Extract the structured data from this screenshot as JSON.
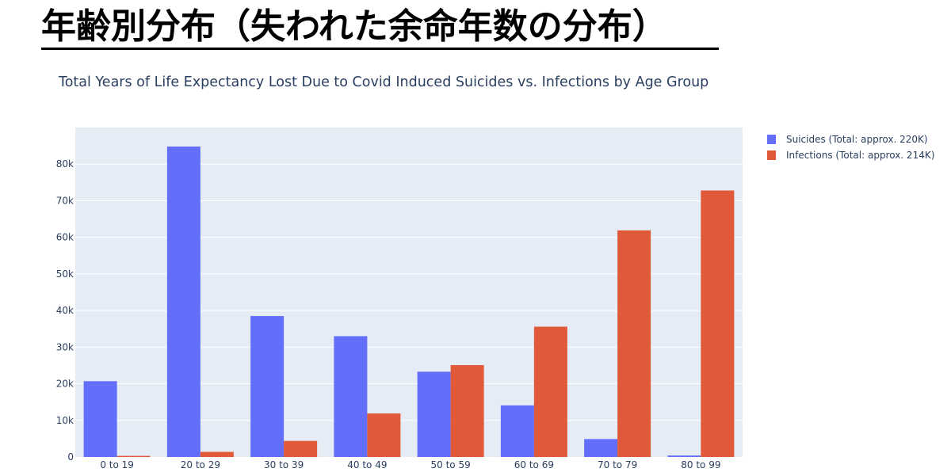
{
  "slide": {
    "title": "年齢別分布（失われた余命年数の分布）"
  },
  "colors": {
    "suicides": "#636efa",
    "infections": "#e05a3a",
    "plot_background": "#e5ecf6",
    "grid": "#ffffff",
    "text": "#2a3f5f"
  },
  "chart_data": {
    "type": "bar",
    "title": "Total Years of Life Expectancy Lost Due to Covid Induced Suicides vs. Infections by Age Group",
    "xlabel": "",
    "ylabel": "",
    "ylim": [
      0,
      90000
    ],
    "y_ticks": [
      {
        "value": 0,
        "label": "0"
      },
      {
        "value": 10000,
        "label": "10k"
      },
      {
        "value": 20000,
        "label": "20k"
      },
      {
        "value": 30000,
        "label": "30k"
      },
      {
        "value": 40000,
        "label": "40k"
      },
      {
        "value": 50000,
        "label": "50k"
      },
      {
        "value": 60000,
        "label": "60k"
      },
      {
        "value": 70000,
        "label": "70k"
      },
      {
        "value": 80000,
        "label": "80k"
      }
    ],
    "grid": true,
    "legend_position": "top-right",
    "categories": [
      "0 to 19",
      "20 to 29",
      "30 to 39",
      "40 to 49",
      "50 to 59",
      "60 to 69",
      "70 to 79",
      "80 to 99"
    ],
    "series": [
      {
        "name": "Suicides (Total: approx. 220K)",
        "color_key": "suicides",
        "values": [
          20700,
          84800,
          38500,
          33000,
          23300,
          14100,
          4900,
          400
        ]
      },
      {
        "name": "Infections (Total: approx. 214K)",
        "color_key": "infections",
        "values": [
          300,
          1400,
          4400,
          11900,
          25100,
          35600,
          61900,
          72800
        ]
      }
    ]
  }
}
